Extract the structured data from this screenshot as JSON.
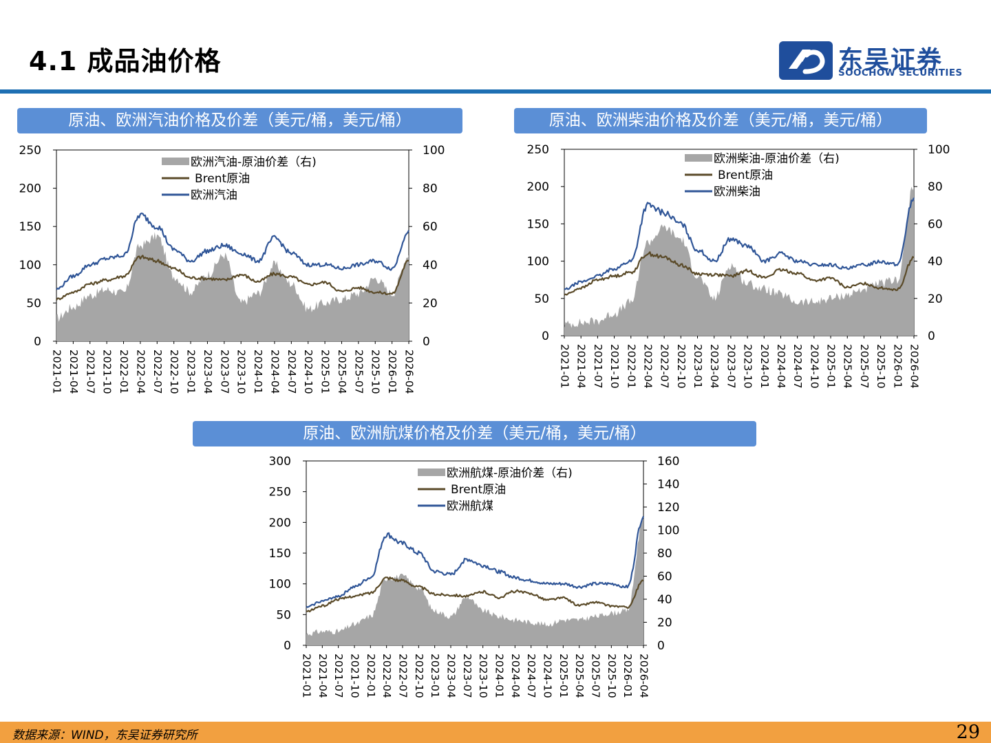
{
  "page": {
    "title": "4.1 成品油价格",
    "page_number": "29"
  },
  "logo": {
    "cn": "东吴证券",
    "en": "SOOCHOW SECURITIES"
  },
  "footer": {
    "source": "数据来源：WIND，东吴证券研究所"
  },
  "colors": {
    "header_bar": "#5b8fd6",
    "rule": "#1e6fb3",
    "footer_bar": "#f2a040",
    "product_line": "#2f5597",
    "brent_line": "#5a4a28",
    "spread_area": "#a6a6a6"
  },
  "charts": {
    "gasoline": {
      "header": "原油、欧洲汽油价格及价差（美元/桶，美元/桶）",
      "legend": [
        "欧洲汽油-原油价差（右)",
        "Brent原油",
        "欧洲汽油"
      ]
    },
    "diesel": {
      "header": "原油、欧洲柴油价格及价差（美元/桶，美元/桶）",
      "legend": [
        "欧洲柴油-原油价差（右)",
        "Brent原油",
        "欧洲柴油"
      ]
    },
    "jet": {
      "header": "原油、欧洲航煤价格及价差（美元/桶，美元/桶）",
      "legend": [
        "欧洲航煤-原油价差（右)",
        "Brent原油",
        "欧洲航煤"
      ]
    }
  },
  "chart_data": [
    {
      "type": "area+line",
      "title": "原油、欧洲汽油价格及价差（美元/桶，美元/桶）",
      "x": [
        "2021-01",
        "2021-04",
        "2021-07",
        "2021-10",
        "2022-01",
        "2022-04",
        "2022-07",
        "2022-10",
        "2023-01",
        "2023-04",
        "2023-07",
        "2023-10",
        "2024-01",
        "2024-04",
        "2024-07",
        "2024-10",
        "2025-01",
        "2025-04",
        "2025-07",
        "2025-10",
        "2026-01",
        "2026-04"
      ],
      "ylim_left": [
        0,
        250
      ],
      "yticks_left": [
        0,
        50,
        100,
        150,
        200,
        250
      ],
      "ylim_right": [
        0,
        100
      ],
      "yticks_right": [
        0,
        20,
        40,
        60,
        80,
        100
      ],
      "legend_position": "top-center",
      "series": [
        {
          "name": "欧洲汽油-原油价差（右)",
          "axis": "right",
          "kind": "area",
          "values": [
            12,
            18,
            24,
            27,
            25,
            50,
            55,
            34,
            26,
            35,
            45,
            20,
            25,
            40,
            30,
            17,
            20,
            22,
            25,
            33,
            25,
            45
          ]
        },
        {
          "name": "Brent原油",
          "axis": "left",
          "kind": "line",
          "values": [
            55,
            64,
            75,
            80,
            85,
            110,
            105,
            95,
            83,
            82,
            80,
            87,
            78,
            88,
            84,
            74,
            77,
            65,
            70,
            64,
            62,
            105
          ]
        },
        {
          "name": "欧洲汽油",
          "axis": "left",
          "kind": "line",
          "values": [
            68,
            85,
            100,
            108,
            112,
            165,
            150,
            120,
            105,
            118,
            125,
            115,
            105,
            135,
            115,
            100,
            100,
            95,
            100,
            105,
            95,
            145
          ]
        }
      ]
    },
    {
      "type": "area+line",
      "title": "原油、欧洲柴油价格及价差（美元/桶，美元/桶）",
      "x": [
        "2021-01",
        "2021-04",
        "2021-07",
        "2021-10",
        "2022-01",
        "2022-04",
        "2022-07",
        "2022-10",
        "2023-01",
        "2023-04",
        "2023-07",
        "2023-10",
        "2024-01",
        "2024-04",
        "2024-07",
        "2024-10",
        "2025-01",
        "2025-04",
        "2025-07",
        "2025-10",
        "2026-01",
        "2026-04"
      ],
      "ylim_left": [
        0,
        250
      ],
      "yticks_left": [
        0,
        50,
        100,
        150,
        200,
        250
      ],
      "ylim_right": [
        0,
        100
      ],
      "yticks_right": [
        0,
        20,
        40,
        60,
        80,
        100
      ],
      "legend_position": "top-center",
      "series": [
        {
          "name": "欧洲柴油-原油价差（右)",
          "axis": "right",
          "kind": "area",
          "values": [
            6,
            7,
            8,
            12,
            18,
            50,
            58,
            52,
            32,
            20,
            38,
            28,
            25,
            22,
            18,
            18,
            20,
            22,
            25,
            28,
            30,
            80
          ]
        },
        {
          "name": "Brent原油",
          "axis": "left",
          "kind": "line",
          "values": [
            55,
            64,
            75,
            80,
            85,
            110,
            105,
            95,
            83,
            82,
            80,
            87,
            78,
            88,
            84,
            74,
            77,
            65,
            70,
            64,
            62,
            105
          ]
        },
        {
          "name": "欧洲柴油",
          "axis": "left",
          "kind": "line",
          "values": [
            62,
            72,
            80,
            90,
            100,
            175,
            165,
            150,
            115,
            100,
            130,
            120,
            100,
            110,
            100,
            95,
            95,
            90,
            95,
            100,
            95,
            185
          ]
        }
      ]
    },
    {
      "type": "area+line",
      "title": "原油、欧洲航煤价格及价差（美元/桶，美元/桶）",
      "x": [
        "2021-01",
        "2021-04",
        "2021-07",
        "2021-10",
        "2022-01",
        "2022-04",
        "2022-07",
        "2022-10",
        "2023-01",
        "2023-04",
        "2023-07",
        "2023-10",
        "2024-01",
        "2024-04",
        "2024-07",
        "2024-10",
        "2025-01",
        "2025-04",
        "2025-07",
        "2025-10",
        "2026-01",
        "2026-04"
      ],
      "ylim_left": [
        0,
        300
      ],
      "yticks_left": [
        0,
        50,
        100,
        150,
        200,
        250,
        300
      ],
      "ylim_right": [
        0,
        160
      ],
      "yticks_right": [
        0,
        20,
        40,
        60,
        80,
        100,
        120,
        140,
        160
      ],
      "legend_position": "top-center",
      "series": [
        {
          "name": "欧洲航煤-原油价差（右)",
          "axis": "right",
          "kind": "area",
          "values": [
            10,
            12,
            12,
            18,
            25,
            58,
            60,
            50,
            30,
            25,
            42,
            30,
            25,
            22,
            20,
            18,
            22,
            22,
            25,
            28,
            30,
            110
          ]
        },
        {
          "name": "Brent原油",
          "axis": "left",
          "kind": "line",
          "values": [
            55,
            64,
            75,
            80,
            85,
            110,
            105,
            95,
            83,
            82,
            80,
            87,
            78,
            88,
            84,
            74,
            77,
            65,
            70,
            64,
            62,
            105
          ]
        },
        {
          "name": "欧洲航煤",
          "axis": "left",
          "kind": "line",
          "values": [
            62,
            72,
            80,
            95,
            110,
            180,
            165,
            150,
            120,
            115,
            140,
            130,
            120,
            110,
            105,
            100,
            100,
            95,
            100,
            100,
            95,
            210
          ]
        }
      ]
    }
  ]
}
